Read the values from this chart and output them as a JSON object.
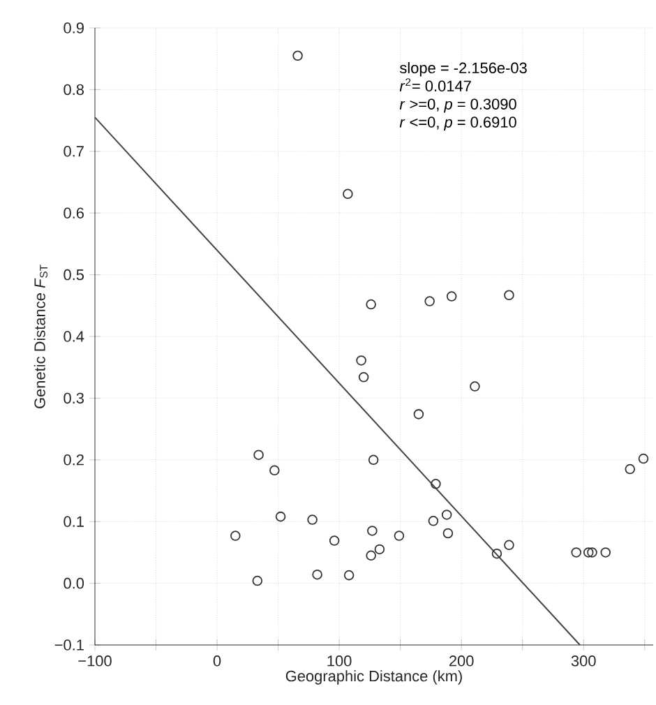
{
  "chart_data": {
    "type": "scatter",
    "xlabel": "Geographic Distance  (km)",
    "ylabel": "Genetic Distance    *F*$_{ST}$",
    "xlim": [
      -100,
      357
    ],
    "ylim": [
      -0.1,
      0.9
    ],
    "xticks": [
      {
        "value": -100,
        "label": "−100"
      },
      {
        "value": -50,
        "label": null
      },
      0,
      {
        "value": 50,
        "label": null
      },
      100,
      {
        "value": 150,
        "label": null
      },
      200,
      {
        "value": 250,
        "label": null
      },
      300,
      {
        "value": 350,
        "label": null
      }
    ],
    "yticks": [
      {
        "value": -0.1,
        "label": "−0.1"
      },
      {
        "value": 0,
        "label": "0.0"
      },
      0.1,
      0.2,
      0.3,
      0.4,
      0.5,
      0.6,
      0.7,
      0.8,
      0.9
    ],
    "grid": true,
    "annotations": [
      "slope = -2.156e-03",
      "*r*$^{2}$= 0.0147",
      "*r* >=0, *p* = 0.3090",
      "*r* <=0, *p* = 0.6910"
    ],
    "series": [
      {
        "marker": "circle",
        "color": "#333333",
        "x": [
          15,
          33,
          34,
          47,
          52,
          78,
          82,
          96,
          108,
          118,
          120,
          128,
          127,
          126,
          133,
          149,
          165,
          179,
          177,
          188,
          189,
          211,
          229,
          239,
          294,
          304,
          307,
          318,
          338,
          349,
          66,
          107,
          126,
          174,
          192,
          239
        ],
        "values": [
          0.077,
          0.004,
          0.208,
          0.183,
          0.108,
          0.103,
          0.014,
          0.069,
          0.013,
          0.361,
          0.334,
          0.2,
          0.085,
          0.045,
          0.055,
          0.077,
          0.274,
          0.161,
          0.101,
          0.111,
          0.081,
          0.319,
          0.048,
          0.062,
          0.05,
          0.05,
          0.05,
          0.05,
          0.185,
          0.202,
          0.855,
          0.631,
          0.452,
          0.457,
          0.465,
          0.467
        ]
      },
      {
        "type": "line",
        "marker": "none",
        "color": "#444444",
        "x": [
          -100,
          297
        ],
        "values": [
          0.755,
          -0.1
        ]
      }
    ]
  }
}
